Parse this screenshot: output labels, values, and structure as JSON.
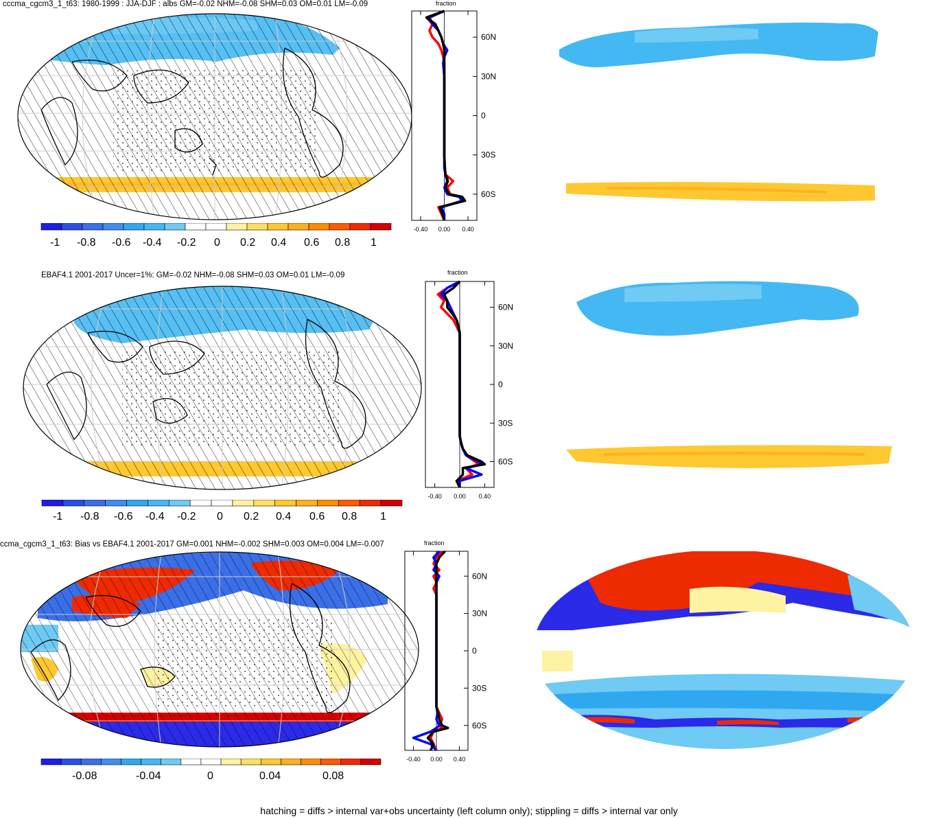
{
  "panels": [
    {
      "title": "cccma_cgcm3_1_t63: 1980-1999 : JJA-DJF : albs GM=-0.02 NHM=-0.08 SHM=0.03 OM=0.01 LM=-0.09",
      "colorbar_labels": [
        "-1",
        "-0.8",
        "-0.6",
        "-0.4",
        "-0.2",
        "0",
        "0.2",
        "0.4",
        "0.6",
        "0.8",
        "1"
      ],
      "profile_title": "fraction"
    },
    {
      "title": "EBAF4.1 2001-2017 Uncer=1%: GM=-0.02 NHM=-0.08 SHM=0.03 OM=0.01 LM=-0.09",
      "colorbar_labels": [
        "-1",
        "-0.8",
        "-0.6",
        "-0.4",
        "-0.2",
        "0",
        "0.2",
        "0.4",
        "0.6",
        "0.8",
        "1"
      ],
      "profile_title": "fraction"
    },
    {
      "title": "ccma_cgcm3_1_t63: Bias vs EBAF4.1 2001-2017 GM=0.001 NHM=-0.002 SHM=0.003 OM=0.004 LM=-0.007",
      "colorbar_labels": [
        "-0.08",
        "-0.04",
        "0",
        "0.04",
        "0.08"
      ],
      "profile_title": "fraction"
    }
  ],
  "footer": "hatching = diffs > internal var+obs uncertainty (left column only); stippling = diffs > internal var only",
  "colors": {
    "diverging": [
      "#1e1ee8",
      "#2a4ee6",
      "#3a6fe8",
      "#3f8ef0",
      "#30a8f0",
      "#44b8f2",
      "#6fcaf4",
      "#ffffff",
      "#ffffff",
      "#fff2a0",
      "#ffe060",
      "#ffc830",
      "#ffb020",
      "#ff8c00",
      "#ff5a00",
      "#ee2a00",
      "#d40000"
    ]
  },
  "chart_data": [
    {
      "type": "line",
      "y_ticks": [
        "60N",
        "30N",
        "0",
        "30S",
        "60S"
      ],
      "x_ticks": [
        "-0.40",
        "0.00",
        "0.40"
      ],
      "xlim": [
        -0.55,
        0.55
      ],
      "series": [
        {
          "color": "#ff0000",
          "lat": [
            80,
            75,
            70,
            65,
            60,
            55,
            50,
            45,
            40,
            30,
            20,
            10,
            0,
            -10,
            -20,
            -30,
            -40,
            -45,
            -50,
            -55,
            -60,
            -62,
            -65,
            -70,
            -75,
            -80
          ],
          "values": [
            0.0,
            -0.3,
            -0.2,
            -0.25,
            -0.2,
            -0.1,
            -0.05,
            -0.02,
            0.0,
            0.0,
            0.0,
            0.0,
            0.0,
            0.0,
            0.0,
            0.0,
            0.01,
            0.02,
            0.15,
            0.05,
            0.1,
            0.3,
            0.35,
            -0.1,
            -0.05,
            0.0
          ]
        },
        {
          "color": "#0000ff",
          "lat": [
            80,
            75,
            70,
            65,
            60,
            55,
            50,
            45,
            40,
            30,
            20,
            10,
            0,
            -10,
            -20,
            -30,
            -40,
            -45,
            -50,
            -55,
            -60,
            -62,
            -65,
            -70,
            -75,
            -80
          ],
          "values": [
            0.0,
            -0.25,
            -0.2,
            -0.1,
            -0.05,
            -0.02,
            0.05,
            0.0,
            -0.02,
            0.0,
            0.0,
            0.0,
            0.0,
            0.0,
            0.0,
            0.0,
            0.0,
            0.02,
            0.05,
            0.0,
            0.05,
            0.25,
            0.3,
            -0.05,
            0.0,
            0.0
          ]
        },
        {
          "color": "#000000",
          "lat": [
            80,
            75,
            70,
            65,
            60,
            55,
            50,
            45,
            40,
            30,
            20,
            10,
            0,
            -10,
            -20,
            -30,
            -40,
            -45,
            -50,
            -55,
            -60,
            -62,
            -65,
            -70,
            -75,
            -80
          ],
          "values": [
            0.0,
            -0.3,
            -0.15,
            -0.1,
            -0.05,
            -0.02,
            0.0,
            0.0,
            0.0,
            0.0,
            0.0,
            0.0,
            0.0,
            0.0,
            0.0,
            0.0,
            0.01,
            0.02,
            0.06,
            0.02,
            0.08,
            0.3,
            0.35,
            -0.08,
            -0.03,
            0.0
          ]
        }
      ]
    },
    {
      "type": "line",
      "y_ticks": [
        "60N",
        "30N",
        "0",
        "30S",
        "60S"
      ],
      "x_ticks": [
        "-0.40",
        "0.00",
        "0.40"
      ],
      "xlim": [
        -0.55,
        0.55
      ],
      "series": [
        {
          "color": "#ff0000",
          "lat": [
            80,
            75,
            70,
            65,
            60,
            55,
            50,
            45,
            40,
            30,
            20,
            10,
            0,
            -10,
            -20,
            -30,
            -40,
            -45,
            -50,
            -55,
            -60,
            -62,
            -65,
            -70,
            -75,
            -80
          ],
          "values": [
            0.0,
            -0.2,
            -0.35,
            -0.25,
            -0.3,
            -0.2,
            -0.1,
            -0.05,
            0.0,
            0.0,
            0.0,
            0.0,
            0.0,
            0.0,
            0.0,
            0.0,
            0.0,
            0.02,
            0.05,
            0.1,
            0.25,
            0.3,
            0.1,
            0.2,
            -0.05,
            0.0
          ]
        },
        {
          "color": "#0000ff",
          "lat": [
            80,
            75,
            70,
            65,
            60,
            55,
            50,
            45,
            40,
            30,
            20,
            10,
            0,
            -10,
            -20,
            -30,
            -40,
            -45,
            -50,
            -55,
            -60,
            -62,
            -65,
            -70,
            -75,
            -80
          ],
          "values": [
            0.0,
            -0.2,
            -0.3,
            -0.2,
            -0.15,
            -0.1,
            -0.05,
            -0.02,
            0.0,
            0.0,
            0.0,
            0.0,
            0.0,
            0.0,
            0.0,
            0.0,
            0.0,
            0.02,
            0.05,
            0.1,
            0.3,
            0.35,
            0.1,
            0.35,
            0.0,
            0.0
          ]
        },
        {
          "color": "#000000",
          "lat": [
            80,
            75,
            70,
            65,
            60,
            55,
            50,
            45,
            40,
            30,
            20,
            10,
            0,
            -10,
            -20,
            -30,
            -40,
            -45,
            -50,
            -55,
            -60,
            -62,
            -65,
            -70,
            -75,
            -80
          ],
          "values": [
            0.0,
            -0.1,
            -0.25,
            -0.2,
            -0.2,
            -0.12,
            -0.05,
            -0.02,
            0.0,
            0.0,
            0.0,
            0.0,
            0.0,
            0.0,
            0.0,
            0.0,
            0.0,
            0.02,
            0.05,
            0.12,
            0.35,
            0.4,
            0.05,
            0.05,
            -0.05,
            0.0
          ]
        }
      ]
    },
    {
      "type": "line",
      "y_ticks": [
        "60N",
        "30N",
        "0",
        "30S",
        "60S"
      ],
      "x_ticks": [
        "-0.40",
        "0.00",
        "0.40"
      ],
      "xlim": [
        -0.55,
        0.55
      ],
      "series": [
        {
          "color": "#ff0000",
          "lat": [
            80,
            75,
            70,
            65,
            60,
            55,
            50,
            45,
            40,
            30,
            20,
            10,
            0,
            -10,
            -20,
            -30,
            -40,
            -45,
            -50,
            -55,
            -60,
            -62,
            -65,
            -70,
            -75,
            -80
          ],
          "values": [
            0.1,
            0.0,
            -0.05,
            0.05,
            -0.05,
            0.0,
            -0.05,
            0.0,
            0.0,
            0.0,
            0.0,
            0.0,
            0.0,
            0.0,
            0.0,
            0.0,
            0.0,
            0.0,
            0.05,
            0.1,
            0.05,
            0.1,
            -0.05,
            -0.1,
            -0.05,
            0.0
          ]
        },
        {
          "color": "#0000ff",
          "lat": [
            80,
            75,
            70,
            65,
            60,
            55,
            50,
            45,
            40,
            30,
            20,
            10,
            0,
            -10,
            -20,
            -30,
            -40,
            -45,
            -50,
            -55,
            -60,
            -62,
            -65,
            -70,
            -75,
            -80
          ],
          "values": [
            0.05,
            -0.05,
            0.0,
            -0.05,
            0.05,
            0.0,
            0.0,
            0.0,
            0.0,
            0.0,
            0.0,
            0.0,
            0.0,
            0.0,
            0.0,
            0.0,
            0.0,
            0.0,
            0.02,
            0.0,
            0.05,
            0.0,
            -0.1,
            -0.4,
            -0.1,
            0.0
          ]
        },
        {
          "color": "#000000",
          "lat": [
            80,
            75,
            70,
            65,
            60,
            55,
            50,
            45,
            40,
            30,
            20,
            10,
            0,
            -10,
            -20,
            -30,
            -40,
            -45,
            -50,
            -55,
            -60,
            -62,
            -65,
            -70,
            -75,
            -80
          ],
          "values": [
            0.15,
            0.05,
            0.0,
            0.0,
            0.0,
            0.0,
            0.0,
            0.0,
            0.0,
            0.0,
            0.0,
            0.0,
            0.0,
            0.0,
            0.0,
            0.0,
            0.0,
            0.0,
            0.03,
            0.05,
            0.1,
            0.2,
            -0.05,
            -0.15,
            -0.05,
            -0.1
          ]
        }
      ]
    }
  ]
}
